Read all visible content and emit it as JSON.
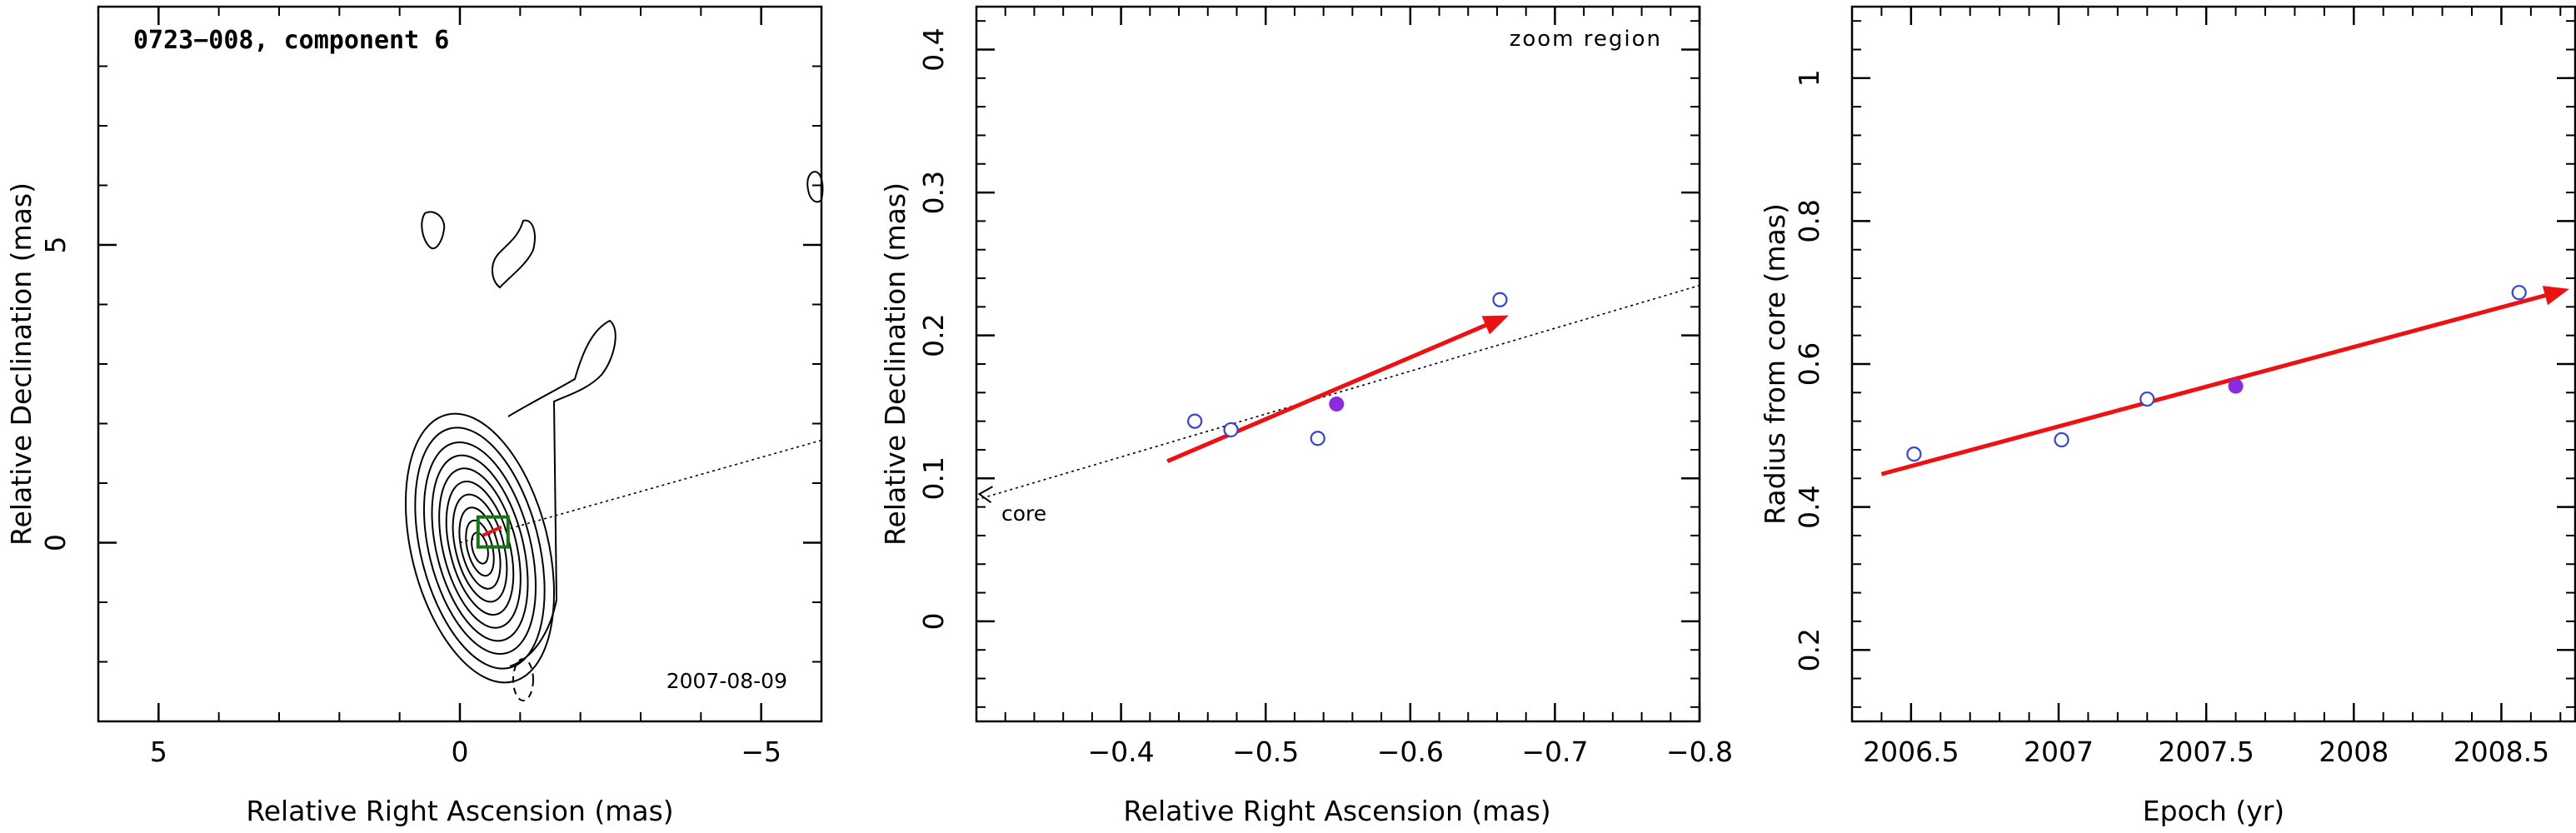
{
  "colors": {
    "axis": "#000000",
    "contour": "#000000",
    "arrow": "#ee1111",
    "open_point": "#3344dd",
    "filled_point": "#8a2be2",
    "box": "#117711",
    "trajectory": "#000000"
  },
  "chart_data": [
    {
      "id": "panel1",
      "type": "contour",
      "title": "0723−008, component 6",
      "xlabel": "Relative Right Ascension (mas)",
      "ylabel": "Relative Declination (mas)",
      "xlim": [
        6,
        -6
      ],
      "ylim": [
        -3,
        9
      ],
      "xticks": [
        5,
        0,
        -5
      ],
      "xticklabels": [
        "5",
        "0",
        "−5"
      ],
      "yticks": [
        0,
        5
      ],
      "yticklabels": [
        "0",
        "5"
      ],
      "date": "2007-08-09",
      "component_box": {
        "x": -0.55,
        "y": 0.18
      },
      "trajectory_line": {
        "x": [
          0.0,
          -6.0
        ],
        "y": [
          0.0,
          1.72
        ]
      }
    },
    {
      "id": "panel2",
      "type": "scatter",
      "annotation": "zoom region",
      "core_label": "core",
      "xlabel": "Relative Right Ascension (mas)",
      "ylabel": "Relative Declination (mas)",
      "xlim": [
        -0.3,
        -0.8
      ],
      "ylim": [
        -0.07,
        0.43
      ],
      "xticks": [
        -0.4,
        -0.5,
        -0.6,
        -0.7,
        -0.8
      ],
      "xticklabels": [
        "−0.4",
        "−0.5",
        "−0.6",
        "−0.7",
        "−0.8"
      ],
      "yticks": [
        0,
        0.1,
        0.2,
        0.3,
        0.4
      ],
      "yticklabels": [
        "0",
        "0.1",
        "0.2",
        "0.3",
        "0.4"
      ],
      "open_points": {
        "x": [
          -0.451,
          -0.476,
          -0.536,
          -0.662
        ],
        "y": [
          0.14,
          0.134,
          0.128,
          0.225
        ]
      },
      "filled_points": {
        "x": [
          -0.549
        ],
        "y": [
          0.152
        ]
      },
      "arrow": {
        "x0": -0.432,
        "y0": 0.112,
        "x1": -0.668,
        "y1": 0.214
      },
      "trajectory_line": {
        "x0": -0.3,
        "y0": 0.085,
        "x1": -0.8,
        "y1": 0.235
      },
      "core_arrow_end": {
        "x": -0.302,
        "y": 0.089
      }
    },
    {
      "id": "panel3",
      "type": "scatter",
      "xlabel": "Epoch (yr)",
      "ylabel": "Radius from core (mas)",
      "xlim": [
        2006.3,
        2008.75
      ],
      "ylim": [
        0.1,
        1.1
      ],
      "xticks": [
        2006.5,
        2007,
        2007.5,
        2008,
        2008.5
      ],
      "xticklabels": [
        "2006.5",
        "2007",
        "2007.5",
        "2008",
        "2008.5"
      ],
      "yticks": [
        0.2,
        0.4,
        0.6,
        0.8,
        1.0
      ],
      "yticklabels": [
        "0.2",
        "0.4",
        "0.6",
        "0.8",
        "1"
      ],
      "open_points": {
        "x": [
          2006.51,
          2007.01,
          2007.3,
          2008.56
        ],
        "y": [
          0.474,
          0.494,
          0.551,
          0.7
        ]
      },
      "filled_points": {
        "x": [
          2007.6
        ],
        "y": [
          0.569
        ]
      },
      "arrow": {
        "x0": 2006.4,
        "y0": 0.446,
        "x1": 2008.73,
        "y1": 0.705
      }
    }
  ]
}
